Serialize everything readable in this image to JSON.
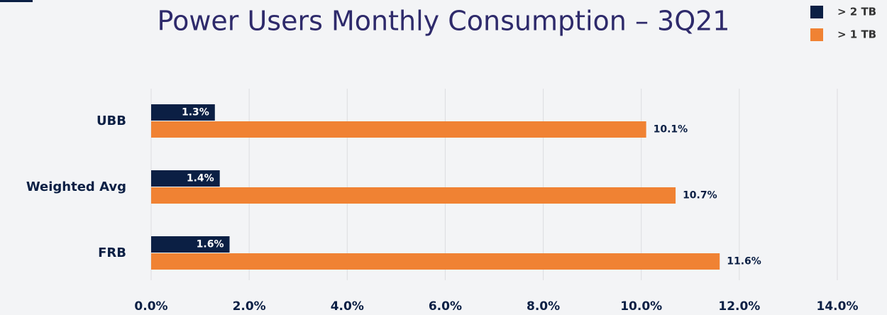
{
  "chart_data": {
    "type": "bar",
    "orientation": "horizontal",
    "title": "Power Users Monthly Consumption – 3Q21",
    "categories": [
      "UBB",
      "Weighted Avg",
      "FRB"
    ],
    "series": [
      {
        "name": "> 2 TB",
        "color": "#0b1f44",
        "values": [
          1.3,
          1.4,
          1.6
        ],
        "value_labels": [
          "1.3%",
          "1.4%",
          "1.6%"
        ]
      },
      {
        "name": "> 1 TB",
        "color": "#f08233",
        "values": [
          10.1,
          10.7,
          11.6
        ],
        "value_labels": [
          "10.1%",
          "10.7%",
          "11.6%"
        ]
      }
    ],
    "xlim": [
      0,
      14
    ],
    "xticks": [
      {
        "value": 0,
        "label": "0.0%"
      },
      {
        "value": 2,
        "label": "2.0%"
      },
      {
        "value": 4,
        "label": "4.0%"
      },
      {
        "value": 6,
        "label": "6.0%"
      },
      {
        "value": 8,
        "label": "8.0%"
      },
      {
        "value": 10,
        "label": "10.0%"
      },
      {
        "value": 12,
        "label": "12.0%"
      },
      {
        "value": 14,
        "label": "14.0%"
      }
    ],
    "grid": true,
    "legend": "top-right"
  }
}
